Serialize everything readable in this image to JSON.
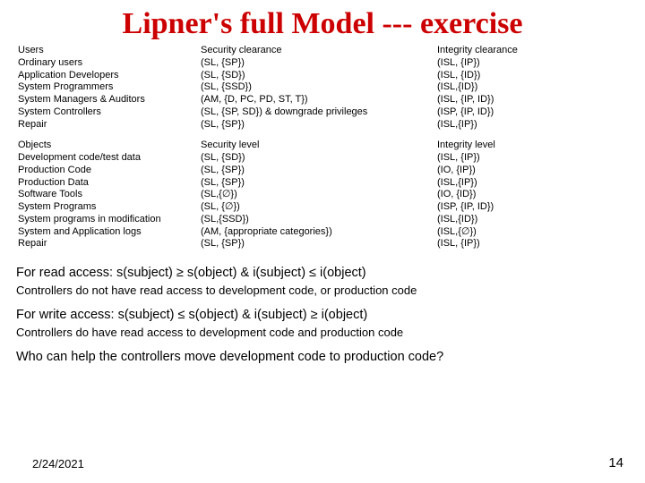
{
  "title": "Lipner's full Model --- exercise",
  "table1": {
    "headers": [
      "Users",
      "Security clearance",
      "Integrity clearance"
    ],
    "rows": [
      [
        "Ordinary users",
        "(SL, {SP})",
        "(ISL, {IP})"
      ],
      [
        "Application Developers",
        "(SL, {SD})",
        "(ISL, {ID})"
      ],
      [
        "System Programmers",
        "(SL, {SSD})",
        "(ISL,{ID})"
      ],
      [
        "System Managers & Auditors",
        "(AM, {D, PC, PD, ST, T})",
        "(ISL, {IP, ID})"
      ],
      [
        "System Controllers",
        "(SL, {SP, SD}) & downgrade privileges",
        "(ISP, {IP, ID})"
      ],
      [
        "Repair",
        "(SL, {SP})",
        "(ISL,{IP})"
      ]
    ]
  },
  "table2": {
    "headers": [
      "Objects",
      "Security level",
      "Integrity level"
    ],
    "rows": [
      [
        "Development code/test data",
        "(SL, {SD})",
        "(ISL, {IP})"
      ],
      [
        "Production Code",
        "(SL, {SP})",
        "(IO, {IP})"
      ],
      [
        "Production Data",
        "(SL, {SP})",
        "(ISL,{IP})"
      ],
      [
        "Software Tools",
        "(SL,{∅})",
        "(IO, {ID})"
      ],
      [
        "System Programs",
        "(SL, {∅})",
        "(ISP, {IP, ID})"
      ],
      [
        "System programs in modification",
        "(SL,{SSD})",
        "(ISL,{ID})"
      ],
      [
        "System and Application logs",
        "(AM, {appropriate categories})",
        "(ISL,{∅})"
      ],
      [
        "Repair",
        "(SL, {SP})",
        "(ISL, {IP})"
      ]
    ]
  },
  "lines": {
    "read1": "For read access:   s(subject) ≥ s(object)   &   i(subject) ≤ i(object)",
    "read2": "Controllers do not have read access to development code, or production code",
    "write1": "For write access:   s(subject) ≤ s(object)   &   i(subject) ≥ i(object)",
    "write2": "Controllers do have read access to development code and production code",
    "q": "Who can help the controllers move development code to production code?"
  },
  "footer": {
    "date": "2/24/2021",
    "page": "14"
  }
}
